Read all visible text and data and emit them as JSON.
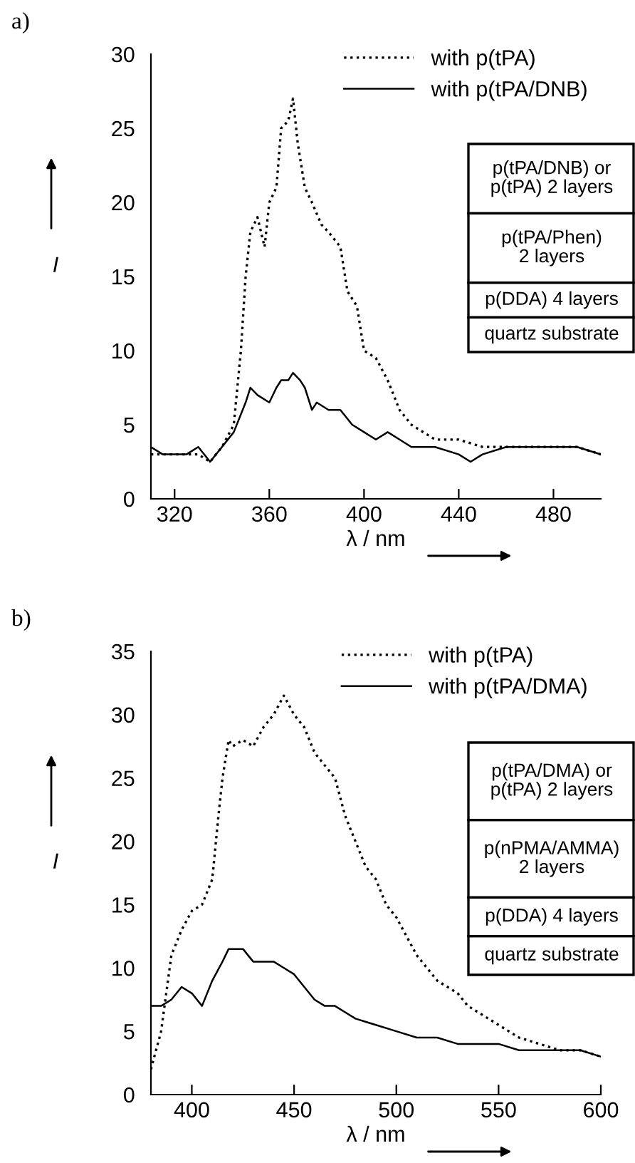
{
  "chart_data": [
    {
      "type": "line",
      "title": "a)",
      "xlabel": "λ / nm",
      "ylabel": "I",
      "xlim": [
        310,
        500
      ],
      "ylim": [
        0,
        30
      ],
      "xticks": [
        320,
        360,
        400,
        440,
        480
      ],
      "yticks": [
        0,
        5,
        10,
        15,
        20,
        25,
        30
      ],
      "grid": false,
      "legend": "top right",
      "marker": "none",
      "annotations": [
        "p(tPA/DNB) or\np(tPA) 2 layers",
        "p(tPA/Phen)\n2 layers",
        "p(DDA) 4 layers",
        "quartz substrate"
      ],
      "series": [
        {
          "name": "with p(tPA)",
          "color": "#000000",
          "line_style": "dotted",
          "x": [
            310,
            320,
            330,
            335,
            340,
            345,
            348,
            350,
            352,
            355,
            358,
            360,
            363,
            365,
            368,
            370,
            372,
            375,
            378,
            382,
            385,
            390,
            393,
            397,
            400,
            405,
            410,
            415,
            420,
            425,
            430,
            440,
            450,
            460,
            470,
            480,
            490,
            500
          ],
          "values": [
            3,
            3,
            3,
            2.5,
            3.5,
            5,
            10,
            15,
            18,
            19,
            17,
            20,
            21,
            25,
            25.5,
            27,
            24,
            21,
            20,
            18.5,
            18,
            17,
            14,
            13,
            10,
            9.5,
            8,
            6,
            5,
            4.5,
            4,
            4,
            3.5,
            3.5,
            3.5,
            3.5,
            3.5,
            3
          ]
        },
        {
          "name": "with p(tPA/DNB)",
          "color": "#000000",
          "line_style": "solid",
          "x": [
            310,
            315,
            320,
            325,
            330,
            335,
            340,
            345,
            350,
            352,
            355,
            360,
            363,
            365,
            368,
            370,
            373,
            375,
            378,
            380,
            385,
            390,
            395,
            400,
            405,
            410,
            415,
            420,
            430,
            440,
            445,
            450,
            460,
            470,
            480,
            490,
            500
          ],
          "values": [
            3.5,
            3,
            3,
            3,
            3.5,
            2.5,
            3.5,
            4.5,
            6.5,
            7.5,
            7,
            6.5,
            7.5,
            8,
            8,
            8.5,
            8,
            7.5,
            6,
            6.5,
            6,
            6,
            5,
            4.5,
            4,
            4.5,
            4,
            3.5,
            3.5,
            3,
            2.5,
            3,
            3.5,
            3.5,
            3.5,
            3.5,
            3
          ]
        }
      ]
    },
    {
      "type": "line",
      "title": "b)",
      "xlabel": "λ / nm",
      "ylabel": "I",
      "xlim": [
        380,
        600
      ],
      "ylim": [
        0,
        35
      ],
      "xticks": [
        400,
        450,
        500,
        550,
        600
      ],
      "yticks": [
        0,
        5,
        10,
        15,
        20,
        25,
        30,
        35
      ],
      "grid": false,
      "legend": "top right",
      "marker": "none",
      "annotations": [
        "p(tPA/DMA) or\np(tPA) 2 layers",
        "p(nPMA/AMMA)\n2 layers",
        "p(DDA) 4 layers",
        "quartz substrate"
      ],
      "series": [
        {
          "name": "with p(tPA)",
          "color": "#000000",
          "line_style": "dotted",
          "x": [
            380,
            385,
            390,
            395,
            400,
            405,
            410,
            413,
            415,
            418,
            420,
            425,
            430,
            435,
            440,
            445,
            450,
            455,
            460,
            465,
            470,
            475,
            480,
            485,
            490,
            495,
            500,
            505,
            510,
            515,
            520,
            525,
            530,
            535,
            540,
            545,
            550,
            555,
            560,
            570,
            580,
            590,
            600
          ],
          "values": [
            2,
            5,
            11,
            13,
            14.5,
            15,
            17,
            22,
            25,
            28,
            27.5,
            28,
            27.5,
            29,
            30,
            31.5,
            30,
            29,
            27,
            26,
            25,
            22,
            20,
            18,
            17,
            15,
            14,
            12.5,
            11,
            10,
            9,
            8.5,
            8,
            7,
            6.5,
            6,
            5.5,
            5,
            4.5,
            4,
            3.5,
            3.5,
            3
          ]
        },
        {
          "name": "with p(tPA/DMA)",
          "color": "#000000",
          "line_style": "solid",
          "x": [
            380,
            385,
            390,
            395,
            400,
            405,
            410,
            415,
            418,
            420,
            425,
            430,
            435,
            440,
            445,
            450,
            455,
            460,
            465,
            470,
            475,
            480,
            490,
            500,
            510,
            520,
            530,
            540,
            550,
            560,
            570,
            580,
            590,
            600
          ],
          "values": [
            7,
            7,
            7.5,
            8.5,
            8,
            7,
            9,
            10.5,
            11.5,
            11.5,
            11.5,
            10.5,
            10.5,
            10.5,
            10,
            9.5,
            8.5,
            7.5,
            7,
            7,
            6.5,
            6,
            5.5,
            5,
            4.5,
            4.5,
            4,
            4,
            4,
            3.5,
            3.5,
            3.5,
            3.5,
            3
          ]
        }
      ]
    }
  ]
}
